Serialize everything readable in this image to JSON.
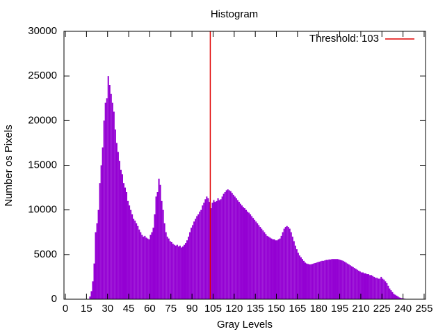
{
  "chart_data": {
    "type": "histogram",
    "title": "Histogram",
    "x_label": "Gray Levels",
    "y_label": "Number os Pixels",
    "color": "#9400d3",
    "bins": [
      0,
      1,
      2,
      3,
      4,
      5,
      6,
      7,
      8,
      9,
      10,
      11,
      12,
      13,
      14,
      15,
      16,
      17,
      18,
      19,
      20,
      21,
      22,
      23,
      24,
      25,
      26,
      27,
      28,
      29,
      30,
      31,
      32,
      33,
      34,
      35,
      36,
      37,
      38,
      39,
      40,
      41,
      42,
      43,
      44,
      45,
      46,
      47,
      48,
      49,
      50,
      51,
      52,
      53,
      54,
      55,
      56,
      57,
      58,
      59,
      60,
      61,
      62,
      63,
      64,
      65,
      66,
      67,
      68,
      69,
      70,
      71,
      72,
      73,
      74,
      75,
      76,
      77,
      78,
      79,
      80,
      81,
      82,
      83,
      84,
      85,
      86,
      87,
      88,
      89,
      90,
      91,
      92,
      93,
      94,
      95,
      96,
      97,
      98,
      99,
      100,
      101,
      102,
      103,
      104,
      105,
      106,
      107,
      108,
      109,
      110,
      111,
      112,
      113,
      114,
      115,
      116,
      117,
      118,
      119,
      120,
      121,
      122,
      123,
      124,
      125,
      126,
      127,
      128,
      129,
      130,
      131,
      132,
      133,
      134,
      135,
      136,
      137,
      138,
      139,
      140,
      141,
      142,
      143,
      144,
      145,
      146,
      147,
      148,
      149,
      150,
      151,
      152,
      153,
      154,
      155,
      156,
      157,
      158,
      159,
      160,
      161,
      162,
      163,
      164,
      165,
      166,
      167,
      168,
      169,
      170,
      171,
      172,
      173,
      174,
      175,
      176,
      177,
      178,
      179,
      180,
      181,
      182,
      183,
      184,
      185,
      186,
      187,
      188,
      189,
      190,
      191,
      192,
      193,
      194,
      195,
      196,
      197,
      198,
      199,
      200,
      201,
      202,
      203,
      204,
      205,
      206,
      207,
      208,
      209,
      210,
      211,
      212,
      213,
      214,
      215,
      216,
      217,
      218,
      219,
      220,
      221,
      222,
      223,
      224,
      225,
      226,
      227,
      228,
      229,
      230,
      231,
      232,
      233,
      234,
      235,
      236,
      237,
      238,
      239,
      240,
      241,
      242,
      243,
      244,
      245,
      246,
      247,
      248,
      249,
      250,
      251,
      252,
      253,
      254,
      255,
      256
    ],
    "values": [
      0,
      0,
      0,
      0,
      0,
      0,
      0,
      0,
      0,
      0,
      0,
      0,
      0,
      0,
      0,
      0,
      0,
      300,
      900,
      2000,
      4000,
      7500,
      8500,
      10000,
      13000,
      15000,
      17000,
      20000,
      22000,
      22500,
      25000,
      24000,
      23000,
      22000,
      21000,
      19000,
      17500,
      16500,
      15500,
      14500,
      14000,
      13000,
      12500,
      12000,
      11000,
      10500,
      10000,
      9500,
      9000,
      8800,
      8500,
      8200,
      7800,
      7500,
      7200,
      7000,
      7100,
      6900,
      6800,
      6700,
      7200,
      7500,
      8000,
      9500,
      11500,
      12000,
      13500,
      12800,
      11000,
      10000,
      8500,
      7500,
      7000,
      6800,
      6500,
      6400,
      6200,
      6100,
      6000,
      6100,
      5900,
      6000,
      5800,
      5900,
      6100,
      6300,
      6600,
      7000,
      7500,
      8000,
      8300,
      8700,
      9000,
      9300,
      9500,
      9800,
      10000,
      10500,
      10800,
      11200,
      11500,
      11300,
      10900,
      10200,
      10800,
      11100,
      10900,
      11000,
      11300,
      11100,
      11200,
      11500,
      11800,
      12000,
      12200,
      12300,
      12200,
      12100,
      11900,
      11700,
      11500,
      11300,
      11100,
      10900,
      10700,
      10500,
      10300,
      10200,
      10000,
      9800,
      9700,
      9500,
      9300,
      9100,
      8900,
      8700,
      8500,
      8300,
      8100,
      7900,
      7700,
      7500,
      7300,
      7100,
      7000,
      6900,
      6800,
      6700,
      6700,
      6600,
      6600,
      6700,
      6800,
      7100,
      7500,
      7900,
      8100,
      8200,
      8100,
      7900,
      7500,
      7000,
      6500,
      6000,
      5600,
      5200,
      4900,
      4700,
      4500,
      4300,
      4100,
      4000,
      3950,
      3900,
      3900,
      3950,
      4000,
      4050,
      4100,
      4150,
      4200,
      4250,
      4300,
      4300,
      4350,
      4400,
      4400,
      4450,
      4450,
      4500,
      4500,
      4500,
      4500,
      4500,
      4450,
      4400,
      4350,
      4300,
      4200,
      4100,
      4000,
      3900,
      3800,
      3700,
      3600,
      3500,
      3400,
      3300,
      3200,
      3100,
      3000,
      3000,
      2900,
      2900,
      2800,
      2800,
      2700,
      2700,
      2600,
      2500,
      2400,
      2400,
      2300,
      2300,
      2500,
      2300,
      2200,
      2000,
      1800,
      1500,
      1200,
      1000,
      800,
      600,
      500,
      400,
      300,
      200,
      150,
      100,
      80,
      50,
      30,
      20,
      10,
      0,
      0,
      0,
      0,
      0,
      0,
      0,
      0,
      0,
      0,
      0
    ],
    "threshold": {
      "value": 103,
      "label": "Threshold: 103",
      "color": "#e00000"
    },
    "xlim": [
      -1,
      256
    ],
    "ylim": [
      0,
      30000
    ],
    "xticks": [
      0,
      15,
      30,
      45,
      60,
      75,
      90,
      105,
      120,
      135,
      150,
      165,
      180,
      195,
      210,
      225,
      240,
      255
    ],
    "yticks": [
      0,
      5000,
      10000,
      15000,
      20000,
      25000,
      30000
    ]
  }
}
